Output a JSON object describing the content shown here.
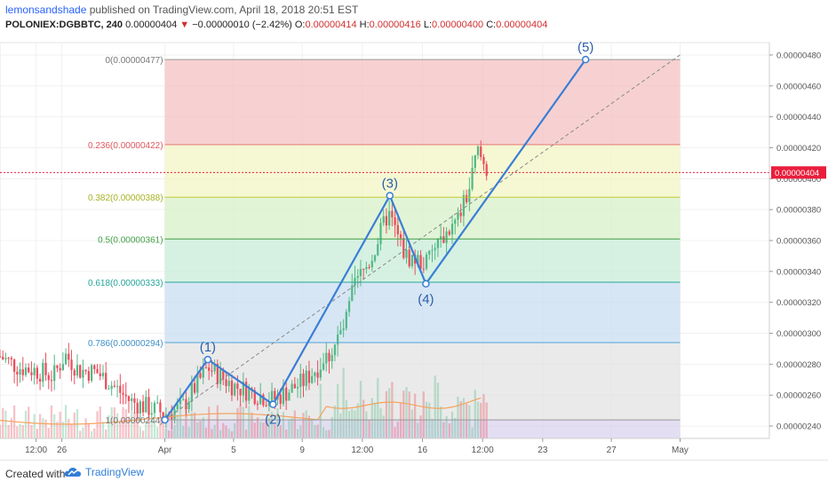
{
  "header": {
    "author": "lemonsandshade",
    "published_text": " published on TradingView.com, April 18, 2018 20:51 EST",
    "symbol": "POLONIEX:DGBBTC, 240",
    "last": "0.00000404",
    "change_arrow": "▼",
    "change": "−0.00000010 (−2.42%)",
    "o_label": "O:",
    "o_value": "0.00000414",
    "h_label": "H:",
    "h_value": "0.00000416",
    "l_label": "L:",
    "l_value": "0.00000400",
    "c_label": "C:",
    "c_value": "0.00000404"
  },
  "footer": {
    "created_with": "Created with",
    "brand": "TradingView",
    "logo_icon": "tradingview-cloud-icon"
  },
  "colors": {
    "up": "#53b987",
    "down": "#eb4d5c",
    "wave": "#3a7ed6",
    "price_line": "#e91e3c"
  },
  "chart_data": {
    "type": "candlestick",
    "title": "",
    "xlabel": "",
    "ylabel": "",
    "ylim": [
      2.32e-06,
      4.88e-06
    ],
    "current_price": 4.04e-06,
    "current_price_label": "0.00000404",
    "y_ticks": [
      {
        "value": 2.4e-06,
        "label": "0.00000240"
      },
      {
        "value": 2.6e-06,
        "label": "0.00000260"
      },
      {
        "value": 2.8e-06,
        "label": "0.00000280"
      },
      {
        "value": 3e-06,
        "label": "0.00000300"
      },
      {
        "value": 3.2e-06,
        "label": "0.00000320"
      },
      {
        "value": 3.4e-06,
        "label": "0.00000340"
      },
      {
        "value": 3.6e-06,
        "label": "0.00000360"
      },
      {
        "value": 3.8e-06,
        "label": "0.00000380"
      },
      {
        "value": 4e-06,
        "label": "0.00000400"
      },
      {
        "value": 4.2e-06,
        "label": "0.00000420"
      },
      {
        "value": 4.4e-06,
        "label": "0.00000440"
      },
      {
        "value": 4.6e-06,
        "label": "0.00000460"
      },
      {
        "value": 4.8e-06,
        "label": "0.00000480"
      }
    ],
    "x_ticks": [
      {
        "label": "12:00",
        "day": -6.5
      },
      {
        "label": "26",
        "day": -5
      },
      {
        "label": "Apr",
        "day": 1
      },
      {
        "label": "5",
        "day": 5
      },
      {
        "label": "9",
        "day": 9
      },
      {
        "label": "12:00",
        "day": 12.5
      },
      {
        "label": "16",
        "day": 16
      },
      {
        "label": "12:00",
        "day": 19.5
      },
      {
        "label": "23",
        "day": 23
      },
      {
        "label": "27",
        "day": 27
      },
      {
        "label": "May",
        "day": 31
      }
    ],
    "x_range_days": [
      -8.6,
      36.2
    ],
    "fib_levels": [
      {
        "ratio": "0",
        "price": 4.77e-06,
        "label": "0(0.00000477)",
        "line": "#999999",
        "fill": "#f4c2c2"
      },
      {
        "ratio": "0.236",
        "price": 4.22e-06,
        "label": "0.236(0.00000422)",
        "line": "#e57373",
        "fill": "#f3f5c4"
      },
      {
        "ratio": "0.382",
        "price": 3.88e-06,
        "label": "0.382(0.00000388)",
        "line": "#c0ca33",
        "fill": "#d8f0c8"
      },
      {
        "ratio": "0.5",
        "price": 3.61e-06,
        "label": "0.5(0.00000361)",
        "line": "#43a047",
        "fill": "#c8ecd8"
      },
      {
        "ratio": "0.618",
        "price": 3.33e-06,
        "label": "0.618(0.00000333)",
        "line": "#26a69a",
        "fill": "#c9def0"
      },
      {
        "ratio": "0.786",
        "price": 2.94e-06,
        "label": "0.786(0.00000294)",
        "line": "#4fa3d8",
        "fill": "#e3e3e3"
      },
      {
        "ratio": "1",
        "price": 2.44e-06,
        "label": "1(0.00000244)",
        "line": "#999999",
        "fill": "#d9d3ee"
      }
    ],
    "fib_label_colors": [
      "#777777",
      "#e0595f",
      "#a7b224",
      "#43a047",
      "#26a69a",
      "#3f8fc9",
      "#777777"
    ],
    "fib_start_day": 1,
    "fib_end_day": 31,
    "elliott_wave": [
      {
        "label": "",
        "day": 1,
        "price": 2.44e-06
      },
      {
        "label": "(1)",
        "day": 3.5,
        "price": 2.83e-06
      },
      {
        "label": "(2)",
        "day": 7.3,
        "price": 2.54e-06
      },
      {
        "label": "(3)",
        "day": 14.1,
        "price": 3.89e-06
      },
      {
        "label": "(4)",
        "day": 16.2,
        "price": 3.32e-06
      },
      {
        "label": "(5)",
        "day": 25.5,
        "price": 4.77e-06
      }
    ],
    "trend_line": [
      {
        "day": 1,
        "price": 2.44e-06
      },
      {
        "day": 31,
        "price": 4.8e-06
      }
    ],
    "candles_ohlc_anchor_path": [
      {
        "day": -8.6,
        "price": 2.85e-06
      },
      {
        "day": -7.5,
        "price": 2.78e-06
      },
      {
        "day": -6.5,
        "price": 2.76e-06
      },
      {
        "day": -5.5,
        "price": 2.72e-06
      },
      {
        "day": -4.8,
        "price": 2.86e-06
      },
      {
        "day": -4,
        "price": 2.76e-06
      },
      {
        "day": -3,
        "price": 2.75e-06
      },
      {
        "day": -2,
        "price": 2.66e-06
      },
      {
        "day": -1,
        "price": 2.56e-06
      },
      {
        "day": 0,
        "price": 2.52e-06
      },
      {
        "day": 1,
        "price": 2.48e-06
      },
      {
        "day": 2,
        "price": 2.52e-06
      },
      {
        "day": 3.5,
        "price": 2.78e-06
      },
      {
        "day": 5,
        "price": 2.66e-06
      },
      {
        "day": 7.3,
        "price": 2.57e-06
      },
      {
        "day": 9,
        "price": 2.68e-06
      },
      {
        "day": 10.5,
        "price": 2.85e-06
      },
      {
        "day": 11.5,
        "price": 3.05e-06
      },
      {
        "day": 12,
        "price": 3.3e-06
      },
      {
        "day": 13,
        "price": 3.48e-06
      },
      {
        "day": 14,
        "price": 3.78e-06
      },
      {
        "day": 15,
        "price": 3.5e-06
      },
      {
        "day": 16.2,
        "price": 3.45e-06
      },
      {
        "day": 17,
        "price": 3.6e-06
      },
      {
        "day": 18,
        "price": 3.72e-06
      },
      {
        "day": 18.7,
        "price": 3.92e-06
      },
      {
        "day": 19.2,
        "price": 4.18e-06
      },
      {
        "day": 19.8,
        "price": 4.04e-06
      }
    ]
  }
}
